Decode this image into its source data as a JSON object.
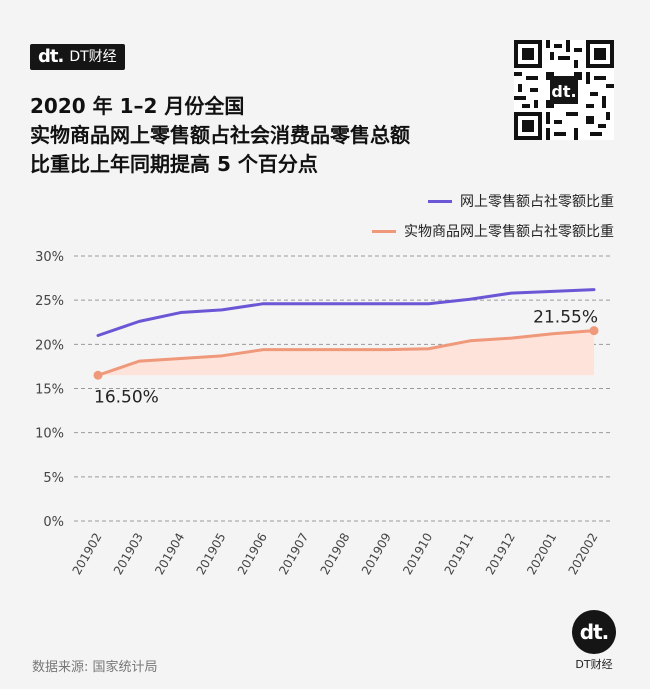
{
  "brand": {
    "mark": "dt.",
    "name": "DT财经"
  },
  "title": {
    "lines": [
      "2020 年 1–2 月份全国",
      "实物商品网上零售额占社会消费品零售总额",
      "比重比上年同期提高 5 个百分点"
    ]
  },
  "source": "数据来源: 国家统计局",
  "footer_logo": {
    "mark": "dt.",
    "label": "DT财经"
  },
  "colors": {
    "series_online": "#6b57d6",
    "series_physical": "#f0987a",
    "area_fill": "#fde3da",
    "grid": "#9a9a9a"
  },
  "chart_data": {
    "type": "line",
    "categories": [
      "201902",
      "201903",
      "201904",
      "201905",
      "201906",
      "201907",
      "201908",
      "201909",
      "201910",
      "201911",
      "201912",
      "202001",
      "202002"
    ],
    "series": [
      {
        "name": "网上零售额占社零额比重",
        "values": [
          21.0,
          22.6,
          23.6,
          23.9,
          24.6,
          24.6,
          24.6,
          24.6,
          24.6,
          25.1,
          25.8,
          26.0,
          26.2
        ]
      },
      {
        "name": "实物商品网上零售额占社零额比重",
        "values": [
          16.5,
          18.1,
          18.4,
          18.7,
          19.4,
          19.4,
          19.4,
          19.4,
          19.5,
          20.4,
          20.7,
          21.2,
          21.55
        ]
      }
    ],
    "yticks": [
      "0%",
      "5%",
      "10%",
      "15%",
      "20%",
      "25%",
      "30%"
    ],
    "ylim": [
      0,
      30
    ],
    "annotations": [
      {
        "series": 1,
        "index": 0,
        "text": "16.50%"
      },
      {
        "series": 1,
        "index": 12,
        "text": "21.55%"
      }
    ],
    "grid": "dashed horizontal",
    "legend": "top-right"
  }
}
